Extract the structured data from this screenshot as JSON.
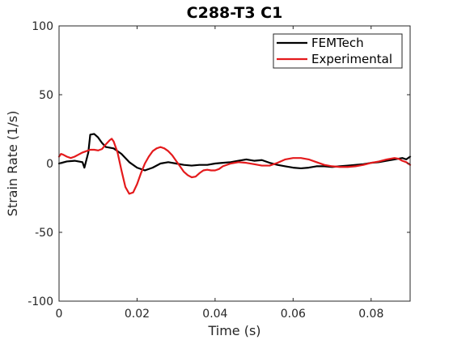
{
  "chart_data": {
    "type": "line",
    "title": "C288-T3 C1",
    "xlabel": "Time (s)",
    "ylabel": "Strain Rate (1/s)",
    "xlim": [
      0,
      0.09
    ],
    "ylim": [
      -100,
      100
    ],
    "xticks": [
      0,
      0.02,
      0.04,
      0.06,
      0.08
    ],
    "xtick_labels": [
      "0",
      "0.02",
      "0.04",
      "0.06",
      "0.08"
    ],
    "yticks": [
      -100,
      -50,
      0,
      50,
      100
    ],
    "ytick_labels": [
      "-100",
      "-50",
      "0",
      "50",
      "100"
    ],
    "grid": false,
    "legend_position": "top-right",
    "series": [
      {
        "name": "FEMTech",
        "color": "#000000",
        "points": [
          [
            0,
            0
          ],
          [
            0.002,
            1.5
          ],
          [
            0.004,
            2
          ],
          [
            0.006,
            1
          ],
          [
            0.0065,
            -3
          ],
          [
            0.0075,
            8
          ],
          [
            0.008,
            21
          ],
          [
            0.009,
            21.5
          ],
          [
            0.01,
            19
          ],
          [
            0.011,
            15
          ],
          [
            0.012,
            12
          ],
          [
            0.014,
            11
          ],
          [
            0.016,
            7
          ],
          [
            0.018,
            1
          ],
          [
            0.02,
            -3
          ],
          [
            0.022,
            -5
          ],
          [
            0.024,
            -3
          ],
          [
            0.026,
            0
          ],
          [
            0.028,
            1
          ],
          [
            0.03,
            0
          ],
          [
            0.032,
            -1
          ],
          [
            0.034,
            -1.5
          ],
          [
            0.036,
            -1
          ],
          [
            0.038,
            -1
          ],
          [
            0.04,
            0
          ],
          [
            0.042,
            0.5
          ],
          [
            0.044,
            1
          ],
          [
            0.046,
            2
          ],
          [
            0.048,
            3
          ],
          [
            0.05,
            2
          ],
          [
            0.052,
            2.5
          ],
          [
            0.054,
            0.5
          ],
          [
            0.056,
            -1
          ],
          [
            0.058,
            -2
          ],
          [
            0.06,
            -3
          ],
          [
            0.062,
            -3.5
          ],
          [
            0.064,
            -3
          ],
          [
            0.066,
            -2
          ],
          [
            0.068,
            -2
          ],
          [
            0.07,
            -2.5
          ],
          [
            0.072,
            -2
          ],
          [
            0.074,
            -1.5
          ],
          [
            0.076,
            -1
          ],
          [
            0.078,
            -0.5
          ],
          [
            0.08,
            0.5
          ],
          [
            0.082,
            1
          ],
          [
            0.084,
            2
          ],
          [
            0.086,
            3
          ],
          [
            0.088,
            4
          ],
          [
            0.089,
            3
          ],
          [
            0.09,
            5
          ]
        ]
      },
      {
        "name": "Experimental",
        "color": "#e41a1c",
        "points": [
          [
            0,
            5
          ],
          [
            0.0005,
            7
          ],
          [
            0.001,
            6.5
          ],
          [
            0.002,
            5
          ],
          [
            0.003,
            4
          ],
          [
            0.004,
            5
          ],
          [
            0.005,
            6.5
          ],
          [
            0.006,
            8
          ],
          [
            0.007,
            9
          ],
          [
            0.008,
            10
          ],
          [
            0.009,
            10
          ],
          [
            0.01,
            9.5
          ],
          [
            0.011,
            10.5
          ],
          [
            0.012,
            14
          ],
          [
            0.013,
            17
          ],
          [
            0.0135,
            18
          ],
          [
            0.014,
            16
          ],
          [
            0.015,
            8
          ],
          [
            0.016,
            -5
          ],
          [
            0.017,
            -17
          ],
          [
            0.018,
            -22
          ],
          [
            0.019,
            -21
          ],
          [
            0.02,
            -15
          ],
          [
            0.021,
            -7
          ],
          [
            0.022,
            0
          ],
          [
            0.023,
            5
          ],
          [
            0.024,
            9
          ],
          [
            0.025,
            11
          ],
          [
            0.026,
            12
          ],
          [
            0.027,
            11
          ],
          [
            0.028,
            9
          ],
          [
            0.029,
            6
          ],
          [
            0.03,
            2
          ],
          [
            0.031,
            -2
          ],
          [
            0.032,
            -6
          ],
          [
            0.033,
            -8.5
          ],
          [
            0.034,
            -10
          ],
          [
            0.035,
            -9.5
          ],
          [
            0.036,
            -7
          ],
          [
            0.037,
            -5
          ],
          [
            0.038,
            -4.5
          ],
          [
            0.039,
            -5
          ],
          [
            0.04,
            -5
          ],
          [
            0.041,
            -4
          ],
          [
            0.042,
            -2
          ],
          [
            0.044,
            0
          ],
          [
            0.046,
            1
          ],
          [
            0.048,
            0.5
          ],
          [
            0.05,
            -0.5
          ],
          [
            0.052,
            -1.5
          ],
          [
            0.054,
            -1.5
          ],
          [
            0.056,
            0.5
          ],
          [
            0.058,
            3
          ],
          [
            0.06,
            4
          ],
          [
            0.062,
            4
          ],
          [
            0.064,
            3
          ],
          [
            0.066,
            1
          ],
          [
            0.068,
            -1
          ],
          [
            0.07,
            -2
          ],
          [
            0.072,
            -2.5
          ],
          [
            0.074,
            -2.5
          ],
          [
            0.076,
            -2
          ],
          [
            0.078,
            -1
          ],
          [
            0.08,
            0.5
          ],
          [
            0.082,
            1.5
          ],
          [
            0.084,
            3
          ],
          [
            0.086,
            4
          ],
          [
            0.087,
            3.5
          ],
          [
            0.088,
            2
          ],
          [
            0.089,
            1
          ],
          [
            0.09,
            -1
          ]
        ]
      }
    ]
  }
}
